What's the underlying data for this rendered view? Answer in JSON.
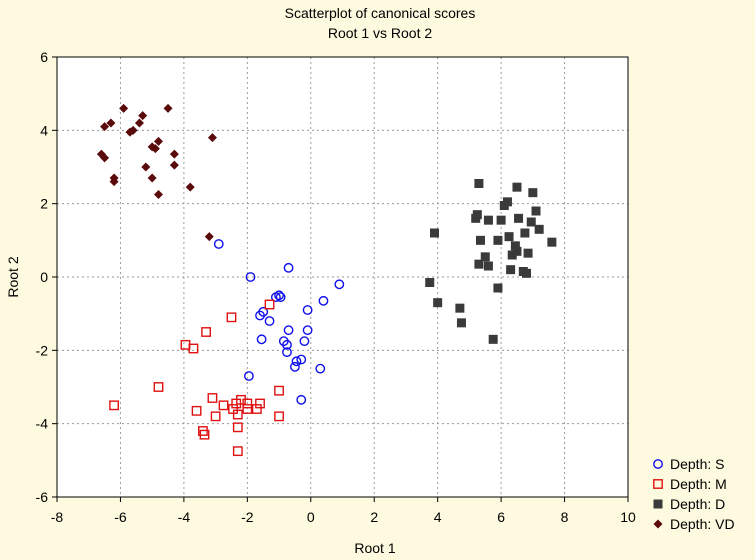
{
  "chart_data": {
    "type": "scatter",
    "title": "Scatterplot of canonical scores",
    "subtitle": "Root 1 vs Root 2",
    "xlabel": "Root 1",
    "ylabel": "Root 2",
    "xlim": [
      -8,
      10
    ],
    "ylim": [
      -6,
      6
    ],
    "xticks": [
      -8,
      -6,
      -4,
      -2,
      0,
      2,
      4,
      6,
      8,
      10
    ],
    "yticks": [
      -6,
      -4,
      -2,
      0,
      2,
      4,
      6
    ],
    "grid": true,
    "legend_position": "bottom-right",
    "series": [
      {
        "name": "Depth: S",
        "marker": "circle-open",
        "color": "#1010ee",
        "points": [
          [
            -2.9,
            0.9
          ],
          [
            -1.9,
            0.0
          ],
          [
            -0.7,
            0.25
          ],
          [
            0.9,
            -0.2
          ],
          [
            0.4,
            -0.65
          ],
          [
            -1.0,
            -0.5
          ],
          [
            -1.1,
            -0.55
          ],
          [
            -0.95,
            -0.55
          ],
          [
            -1.5,
            -0.95
          ],
          [
            -1.6,
            -1.05
          ],
          [
            -1.3,
            -1.2
          ],
          [
            -0.1,
            -0.9
          ],
          [
            -0.7,
            -1.45
          ],
          [
            -0.1,
            -1.45
          ],
          [
            -1.55,
            -1.7
          ],
          [
            -0.85,
            -1.75
          ],
          [
            -0.75,
            -1.85
          ],
          [
            -0.2,
            -1.75
          ],
          [
            -0.75,
            -2.05
          ],
          [
            -0.3,
            -2.25
          ],
          [
            -0.45,
            -2.3
          ],
          [
            -0.5,
            -2.45
          ],
          [
            0.3,
            -2.5
          ],
          [
            -1.95,
            -2.7
          ],
          [
            -0.3,
            -3.35
          ]
        ]
      },
      {
        "name": "Depth: M",
        "marker": "square-open",
        "color": "#e01010",
        "points": [
          [
            -1.3,
            -0.75
          ],
          [
            -2.5,
            -1.1
          ],
          [
            -3.3,
            -1.5
          ],
          [
            -3.95,
            -1.85
          ],
          [
            -3.7,
            -1.95
          ],
          [
            -4.8,
            -3.0
          ],
          [
            -1.0,
            -3.1
          ],
          [
            -6.2,
            -3.5
          ],
          [
            -3.6,
            -3.65
          ],
          [
            -3.1,
            -3.3
          ],
          [
            -2.2,
            -3.35
          ],
          [
            -2.35,
            -3.45
          ],
          [
            -2.45,
            -3.6
          ],
          [
            -2.75,
            -3.5
          ],
          [
            -2.0,
            -3.45
          ],
          [
            -2.0,
            -3.6
          ],
          [
            -1.6,
            -3.45
          ],
          [
            -1.7,
            -3.6
          ],
          [
            -2.3,
            -3.75
          ],
          [
            -3.0,
            -3.8
          ],
          [
            -1.0,
            -3.8
          ],
          [
            -3.4,
            -4.2
          ],
          [
            -3.35,
            -4.3
          ],
          [
            -2.3,
            -4.1
          ],
          [
            -2.3,
            -4.75
          ]
        ]
      },
      {
        "name": "Depth: D",
        "marker": "square-filled",
        "color": "#3a3a3a",
        "points": [
          [
            5.3,
            2.55
          ],
          [
            6.5,
            2.45
          ],
          [
            7.0,
            2.3
          ],
          [
            6.2,
            2.05
          ],
          [
            6.1,
            1.95
          ],
          [
            5.25,
            1.7
          ],
          [
            5.2,
            1.6
          ],
          [
            5.6,
            1.55
          ],
          [
            6.0,
            1.55
          ],
          [
            6.55,
            1.6
          ],
          [
            6.95,
            1.5
          ],
          [
            7.1,
            1.8
          ],
          [
            3.9,
            1.2
          ],
          [
            6.25,
            1.1
          ],
          [
            6.75,
            1.2
          ],
          [
            7.2,
            1.3
          ],
          [
            5.35,
            1.0
          ],
          [
            5.9,
            1.0
          ],
          [
            6.45,
            0.85
          ],
          [
            6.5,
            0.7
          ],
          [
            7.6,
            0.95
          ],
          [
            6.35,
            0.6
          ],
          [
            5.5,
            0.55
          ],
          [
            6.85,
            0.65
          ],
          [
            5.3,
            0.35
          ],
          [
            5.6,
            0.3
          ],
          [
            6.3,
            0.2
          ],
          [
            6.7,
            0.15
          ],
          [
            6.8,
            0.1
          ],
          [
            3.75,
            -0.15
          ],
          [
            5.9,
            -0.3
          ],
          [
            4.0,
            -0.7
          ],
          [
            4.7,
            -0.85
          ],
          [
            4.75,
            -1.25
          ],
          [
            5.75,
            -1.7
          ]
        ]
      },
      {
        "name": "Depth: VD",
        "marker": "diamond-filled",
        "color": "#5a0a0a",
        "points": [
          [
            -5.9,
            4.6
          ],
          [
            -4.5,
            4.6
          ],
          [
            -6.3,
            4.2
          ],
          [
            -6.5,
            4.1
          ],
          [
            -5.3,
            4.4
          ],
          [
            -5.4,
            4.2
          ],
          [
            -5.7,
            3.95
          ],
          [
            -5.6,
            4.0
          ],
          [
            -3.1,
            3.8
          ],
          [
            -4.8,
            3.7
          ],
          [
            -5.0,
            3.55
          ],
          [
            -4.9,
            3.5
          ],
          [
            -6.6,
            3.35
          ],
          [
            -6.5,
            3.25
          ],
          [
            -4.3,
            3.35
          ],
          [
            -5.2,
            3.0
          ],
          [
            -4.3,
            3.05
          ],
          [
            -6.2,
            2.7
          ],
          [
            -6.2,
            2.6
          ],
          [
            -5.0,
            2.7
          ],
          [
            -3.8,
            2.45
          ],
          [
            -4.8,
            2.25
          ],
          [
            -3.2,
            1.1
          ]
        ]
      }
    ]
  }
}
